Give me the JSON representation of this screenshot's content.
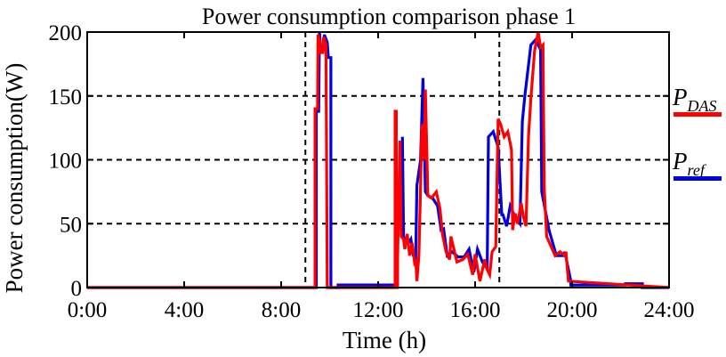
{
  "chart_data": {
    "type": "line",
    "title": "Power consumption comparison phase 1",
    "xlabel": "Time (h)",
    "ylabel": "Power consumption(W)",
    "xlim": [
      0,
      24
    ],
    "ylim": [
      0,
      200
    ],
    "xticks": [
      0,
      4,
      8,
      12,
      16,
      20,
      24
    ],
    "xtick_labels": [
      "0:00",
      "4:00",
      "8:00",
      "12:00",
      "16:00",
      "20:00",
      "24:00"
    ],
    "yticks": [
      0,
      50,
      100,
      150,
      200
    ],
    "ytick_labels": [
      "0",
      "50",
      "100",
      "150",
      "200"
    ],
    "vlines": [
      9,
      17
    ],
    "legend": [
      {
        "main": "P",
        "sub": "DAS",
        "color": "#ff0000"
      },
      {
        "main": "P",
        "sub": "ref",
        "color": "#0000dd"
      }
    ],
    "series": [
      {
        "name": "P_ref",
        "color": "#0000dd",
        "x": [
          0,
          9.45,
          9.45,
          9.55,
          9.58,
          9.62,
          9.62,
          9.75,
          9.78,
          9.9,
          9.95,
          10.05,
          10.05,
          10.35,
          10.35,
          12.8,
          12.8,
          13.0,
          13.0,
          13.05,
          13.15,
          13.25,
          13.35,
          13.45,
          13.55,
          13.6,
          13.75,
          13.85,
          13.95,
          14.05,
          14.25,
          14.45,
          14.6,
          14.7,
          14.85,
          15.05,
          15.3,
          15.55,
          15.75,
          15.95,
          16.1,
          16.3,
          16.5,
          16.55,
          16.75,
          16.95,
          17.1,
          17.15,
          17.3,
          17.45,
          17.65,
          17.85,
          17.95,
          18.05,
          18.3,
          18.5,
          18.7,
          18.75,
          19.05,
          19.35,
          19.65,
          19.7,
          19.95,
          19.95,
          20.6,
          22.2,
          22.2,
          22.9,
          22.9,
          24
        ],
        "values": [
          0,
          0,
          138,
          138,
          200,
          190,
          186,
          186,
          198,
          192,
          180,
          180,
          0,
          0,
          2,
          2,
          50,
          50,
          118,
          40,
          35,
          35,
          38,
          25,
          22,
          80,
          100,
          164,
          75,
          72,
          70,
          64,
          45,
          46,
          25,
          28,
          24,
          24,
          30,
          12,
          30,
          20,
          15,
          118,
          122,
          110,
          57,
          57,
          48,
          64,
          55,
          50,
          130,
          150,
          190,
          194,
          186,
          75,
          45,
          25,
          25,
          28,
          5,
          2,
          2,
          2,
          3,
          3,
          0,
          0
        ]
      },
      {
        "name": "P_DAS",
        "color": "#ff0000",
        "x": [
          0,
          9.4,
          9.4,
          9.5,
          9.52,
          9.6,
          9.6,
          9.72,
          9.75,
          9.85,
          9.9,
          10.0,
          10.0,
          12.7,
          12.7,
          12.75,
          12.75,
          12.8,
          12.8,
          12.9,
          12.95,
          13.05,
          13.1,
          13.2,
          13.3,
          13.4,
          13.5,
          13.55,
          13.6,
          13.68,
          13.75,
          13.8,
          13.85,
          13.9,
          13.95,
          14.05,
          14.2,
          14.4,
          14.55,
          14.65,
          14.8,
          14.95,
          15.0,
          15.25,
          15.5,
          15.7,
          15.9,
          16.0,
          16.2,
          16.4,
          16.45,
          16.6,
          16.7,
          16.85,
          16.95,
          17.05,
          17.2,
          17.35,
          17.5,
          17.55,
          17.65,
          17.75,
          17.9,
          18.0,
          18.1,
          18.2,
          18.3,
          18.45,
          18.6,
          18.7,
          18.8,
          18.85,
          18.95,
          19.3,
          19.5,
          19.7,
          19.75,
          19.8,
          19.85,
          24
        ],
        "values": [
          0,
          0,
          140,
          140,
          198,
          192,
          184,
          184,
          196,
          190,
          0,
          0,
          0,
          0,
          138,
          138,
          0,
          0,
          20,
          115,
          40,
          38,
          30,
          42,
          25,
          35,
          20,
          22,
          5,
          25,
          78,
          125,
          128,
          100,
          155,
          72,
          70,
          75,
          62,
          42,
          28,
          22,
          40,
          20,
          22,
          26,
          10,
          26,
          5,
          22,
          16,
          10,
          28,
          32,
          132,
          128,
          118,
          122,
          108,
          45,
          58,
          50,
          66,
          55,
          48,
          118,
          148,
          185,
          200,
          188,
          190,
          78,
          40,
          25,
          28,
          25,
          28,
          15,
          5,
          0
        ]
      }
    ]
  }
}
